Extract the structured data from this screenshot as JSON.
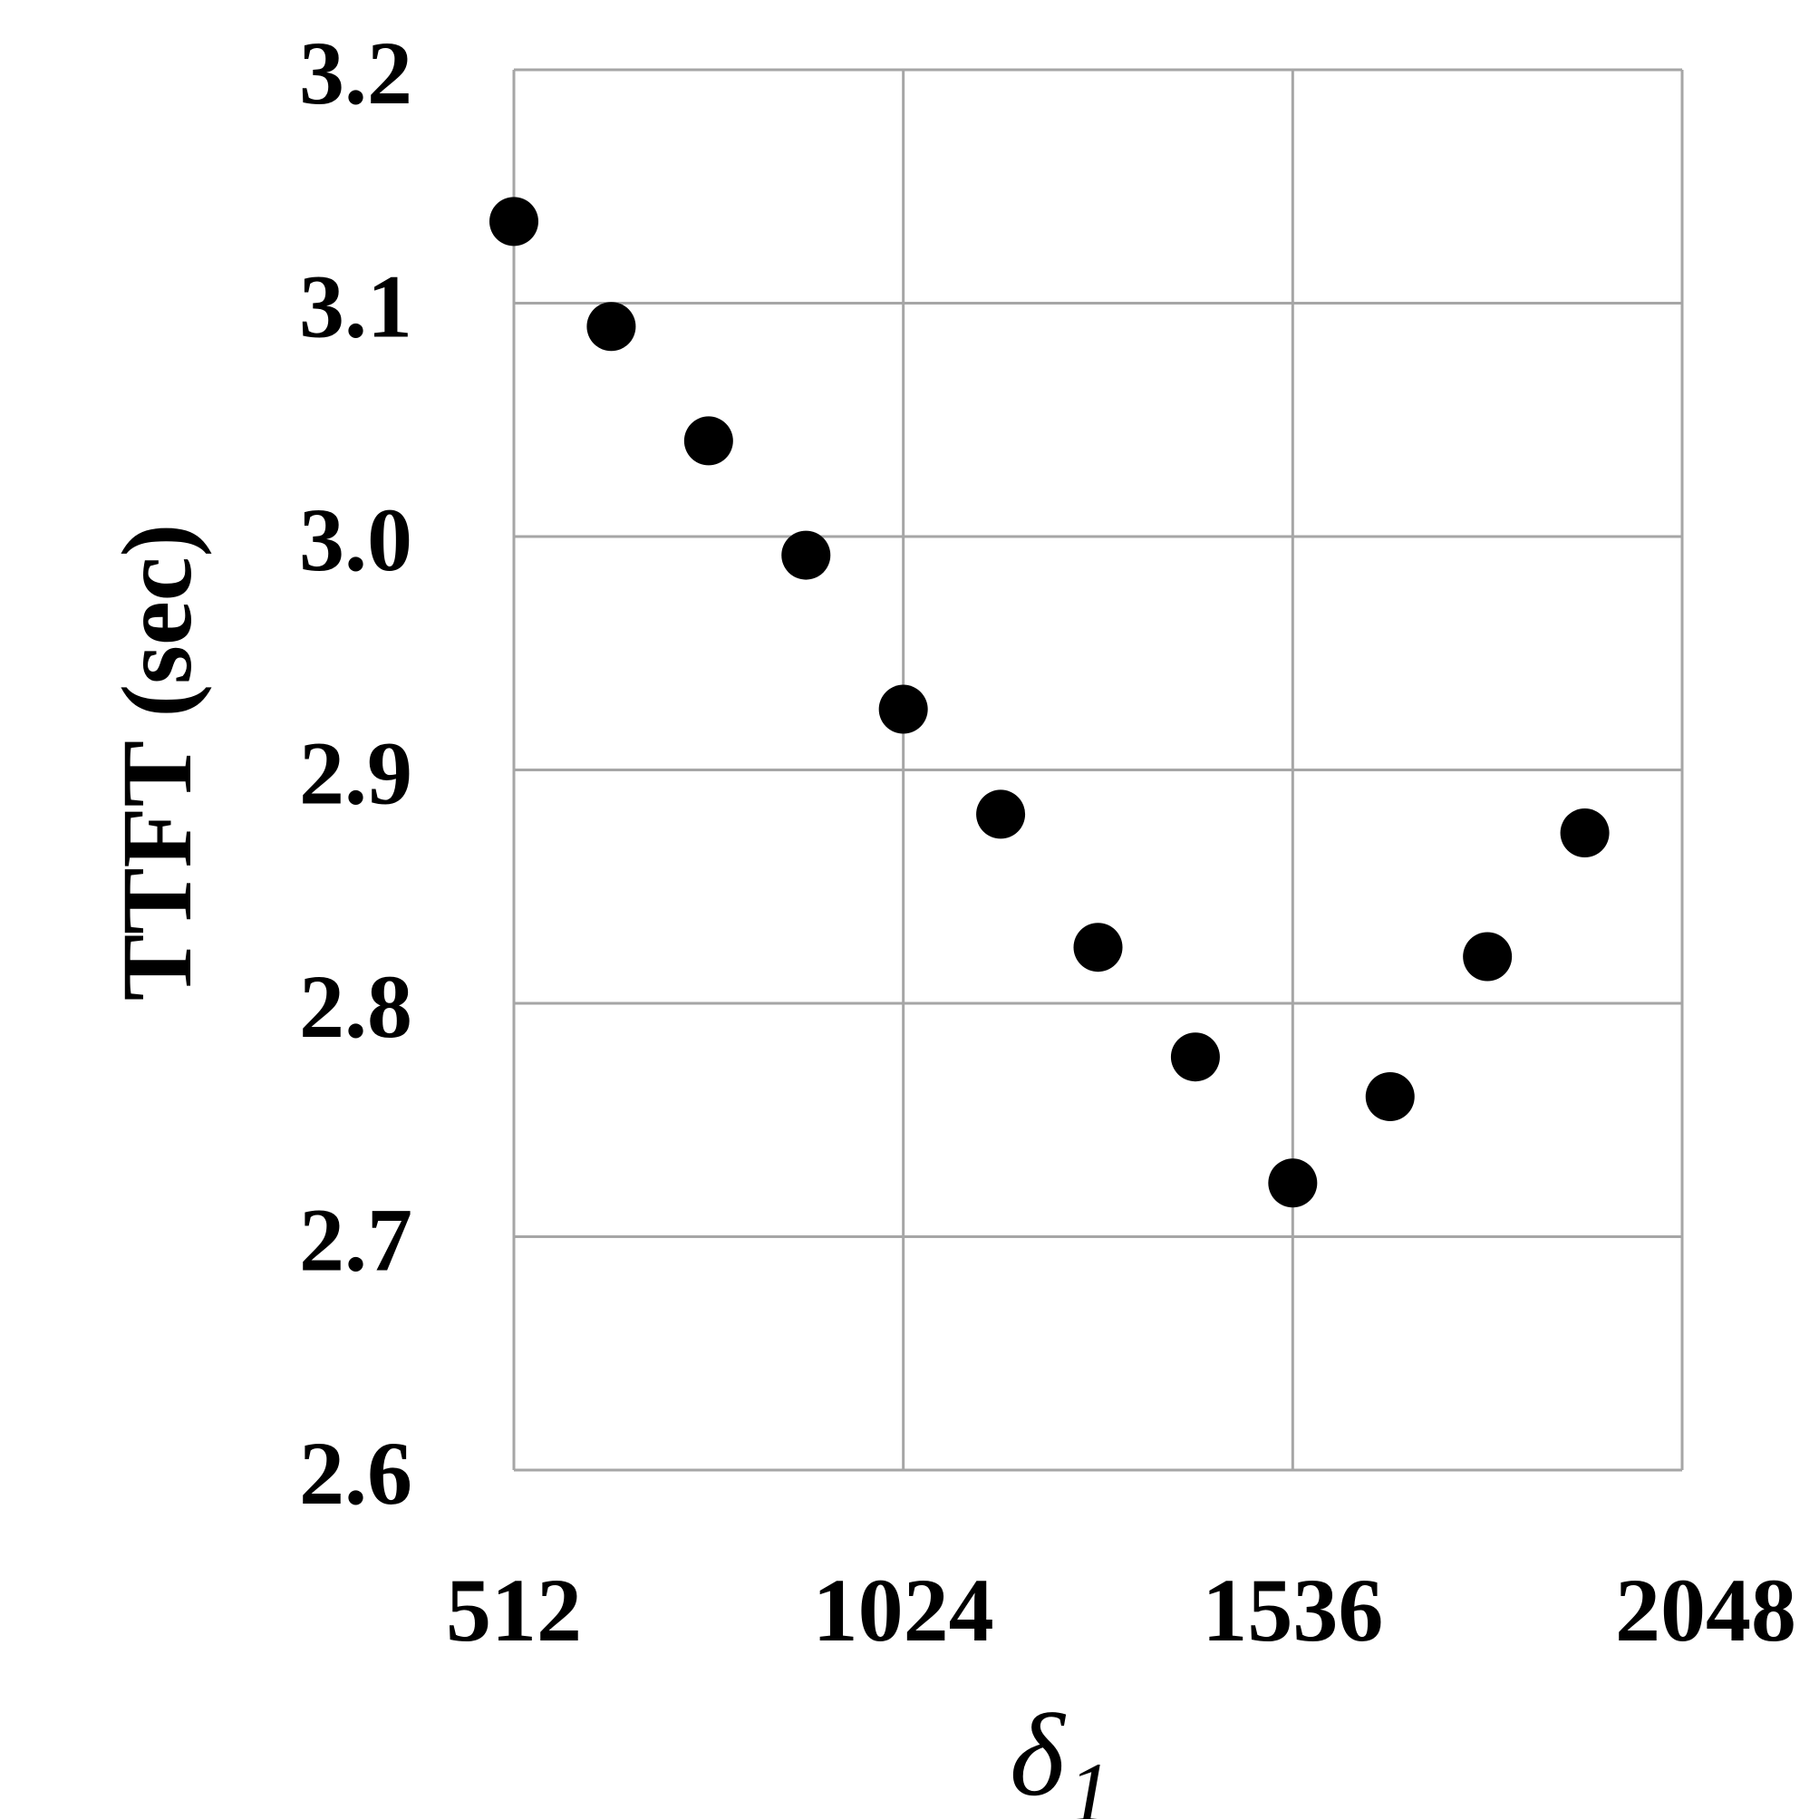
{
  "chart_data": {
    "type": "scatter",
    "title": "",
    "xlabel": "δ",
    "xlabel_subscript": "1",
    "ylabel": "TTFT (sec)",
    "xlim": [
      512,
      2048
    ],
    "ylim": [
      2.6,
      3.2
    ],
    "xticks": [
      512,
      1024,
      1536,
      2048
    ],
    "yticks": [
      2.6,
      2.7,
      2.8,
      2.9,
      3.0,
      3.1,
      3.2
    ],
    "xtick_labels": [
      "512",
      "1024",
      "1536",
      "2048"
    ],
    "ytick_labels": [
      "2.6",
      "2.7",
      "2.8",
      "2.9",
      "3.0",
      "3.1",
      "3.2"
    ],
    "grid": true,
    "legend": false,
    "marker_color": "#000000",
    "grid_color": "#a6a6a6",
    "series": [
      {
        "x": [
          512,
          640,
          768,
          896,
          1024,
          1152,
          1280,
          1408,
          1536,
          1664,
          1792,
          1920
        ],
        "y": [
          3.135,
          3.09,
          3.041,
          2.992,
          2.926,
          2.881,
          2.824,
          2.777,
          2.723,
          2.76,
          2.82,
          2.873
        ]
      }
    ]
  }
}
